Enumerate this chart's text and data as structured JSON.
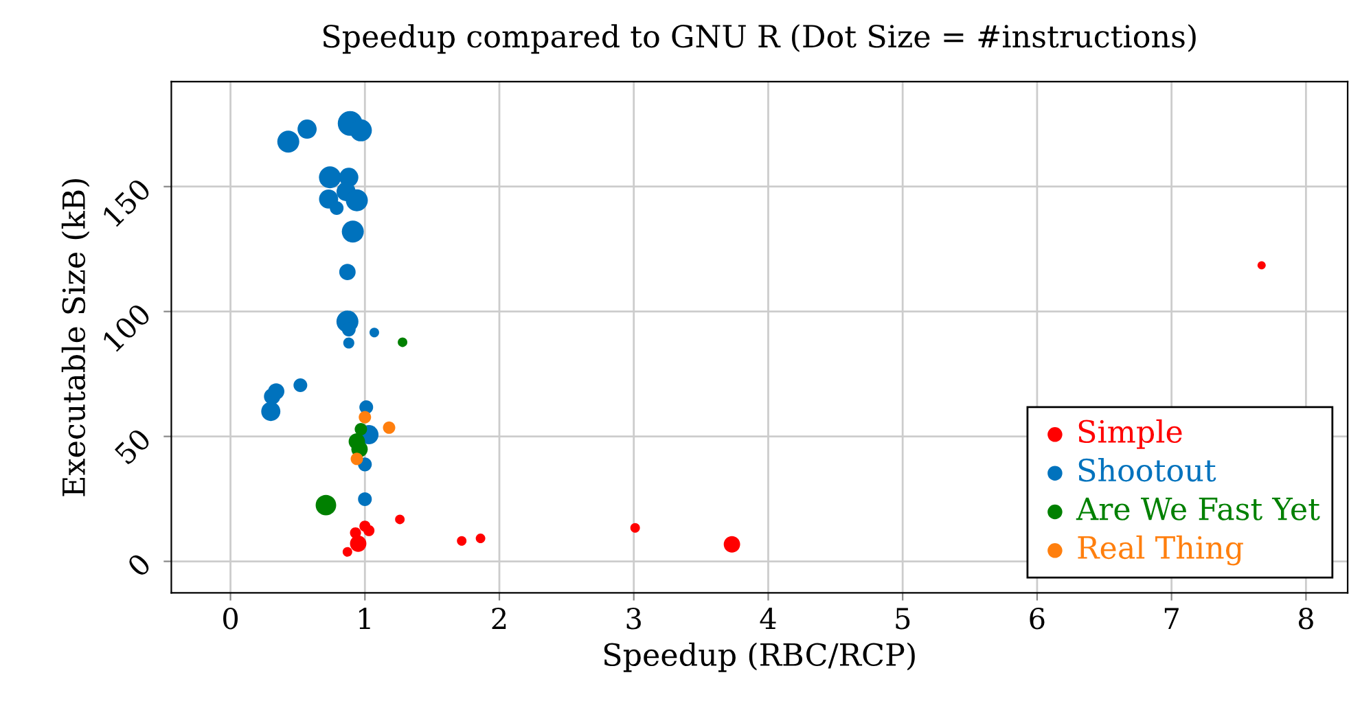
{
  "chart_data": {
    "type": "bubble",
    "title": "Speedup compared to GNU R (Dot Size = #instructions)",
    "xlabel": "Speedup (RBC/RCP)",
    "ylabel": "Executable Size (kB)",
    "xlim": [
      -0.44,
      8.31
    ],
    "ylim": [
      -12.6,
      192
    ],
    "xticks": [
      0,
      1,
      2,
      3,
      4,
      5,
      6,
      7,
      8
    ],
    "yticks": [
      0,
      50,
      100,
      150
    ],
    "grid": true,
    "legend": "bottom right",
    "series": [
      {
        "name": "Simple",
        "color": "#ff0000",
        "x": [
          1.26,
          1.0,
          1.03,
          0.93,
          0.95,
          0.87,
          1.72,
          1.86,
          3.01,
          3.73,
          7.67
        ],
        "values": [
          16.8,
          14.1,
          12.3,
          11.4,
          7.1,
          3.8,
          8.2,
          9.2,
          13.4,
          6.8,
          118.5
        ],
        "sizes": [
          0.15,
          0.2,
          0.2,
          0.2,
          0.44,
          0.15,
          0.15,
          0.15,
          0.15,
          0.44,
          0.11
        ]
      },
      {
        "name": "Shootout",
        "color": "#0072bd",
        "x": [
          0.89,
          0.97,
          0.43,
          0.57,
          0.74,
          0.88,
          0.73,
          0.79,
          0.86,
          0.94,
          0.91,
          0.87,
          0.87,
          0.88,
          0.88,
          1.07,
          0.31,
          0.34,
          0.3,
          0.52,
          1.01,
          1.03,
          1.0,
          1.0
        ],
        "values": [
          175.3,
          172.5,
          168,
          173,
          153.7,
          153.7,
          145,
          141.4,
          148,
          144.5,
          132,
          115.8,
          96,
          92.8,
          87.4,
          91.6,
          66,
          68,
          60,
          70.5,
          61.7,
          50.7,
          38.8,
          24.9
        ],
        "sizes": [
          1,
          0.79,
          0.79,
          0.6,
          0.79,
          0.6,
          0.6,
          0.31,
          0.6,
          0.79,
          0.79,
          0.44,
          0.79,
          0.31,
          0.2,
          0.15,
          0.44,
          0.44,
          0.6,
          0.31,
          0.31,
          0.6,
          0.31,
          0.31
        ]
      },
      {
        "name": "Are We Fast Yet",
        "color": "#008000",
        "x": [
          1.28,
          0.97,
          0.94,
          0.96,
          0.71
        ],
        "values": [
          87.7,
          52.9,
          48,
          44.9,
          22.5
        ],
        "sizes": [
          0.15,
          0.25,
          0.44,
          0.44,
          0.69
        ]
      },
      {
        "name": "Real Thing",
        "color": "#ff7f0e",
        "x": [
          1.0,
          1.18,
          0.94
        ],
        "values": [
          57.7,
          53.5,
          41
        ],
        "sizes": [
          0.25,
          0.25,
          0.25
        ]
      }
    ]
  }
}
